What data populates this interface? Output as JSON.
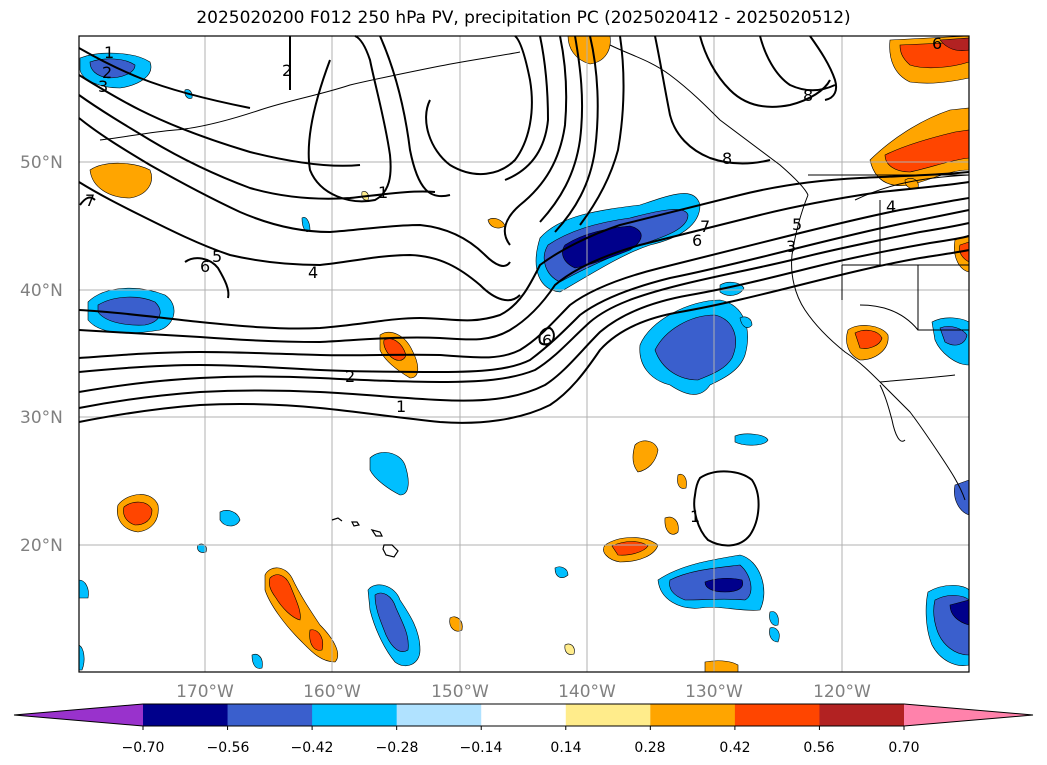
{
  "title": "2025020200 F012 250 hPa PV, precipitation PC (2025020412 - 2025020512)",
  "map": {
    "lat_labels": [
      "50°N",
      "40°N",
      "30°N",
      "20°N"
    ],
    "lon_labels": [
      "170°W",
      "160°W",
      "150°W",
      "140°W",
      "130°W",
      "120°W"
    ],
    "contour_labels": [
      "1",
      "2",
      "3",
      "2",
      "1",
      "6",
      "5",
      "4",
      "2",
      "1",
      "6",
      "7",
      "6",
      "5",
      "3",
      "8",
      "8",
      "4",
      "6",
      "1",
      "7"
    ]
  },
  "colorbar": {
    "ticks": [
      "−0.70",
      "−0.56",
      "−0.42",
      "−0.28",
      "−0.14",
      "0.14",
      "0.28",
      "0.42",
      "0.56",
      "0.70"
    ],
    "colors": [
      "#9932cc",
      "#00008b",
      "#3a5fcd",
      "#00bfff",
      "#b0e2ff",
      "#ffffff",
      "#ffec8b",
      "#ffa500",
      "#ff4500",
      "#b22222",
      "#ff82ab"
    ]
  }
}
